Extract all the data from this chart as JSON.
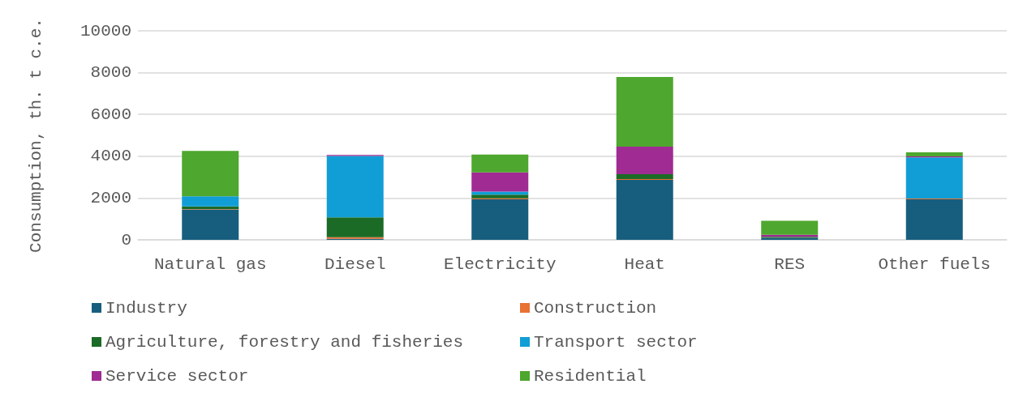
{
  "chart_data": {
    "type": "bar",
    "stacked": true,
    "ylabel": "Consumption, th. t c.e.",
    "categories": [
      "Natural gas",
      "Diesel",
      "Electricity",
      "Heat",
      "RES",
      "Other fuels"
    ],
    "series": [
      {
        "name": "Industry",
        "color": "#175e7e",
        "values": [
          1450,
          50,
          1940,
          2870,
          100,
          1940
        ]
      },
      {
        "name": "Construction",
        "color": "#e97132",
        "values": [
          20,
          80,
          50,
          40,
          null,
          40
        ]
      },
      {
        "name": "Agriculture, forestry and fisheries",
        "color": "#1b6b26",
        "values": [
          130,
          950,
          170,
          230,
          50,
          0
        ]
      },
      {
        "name": "Transport sector",
        "color": "#119ed6",
        "values": [
          480,
          2930,
          150,
          0,
          0,
          1960
        ]
      },
      {
        "name": "Service sector",
        "color": "#a02b93",
        "values": [
          null,
          50,
          920,
          1320,
          90,
          50
        ]
      },
      {
        "name": "Residential",
        "color": "#4ea72e",
        "values": [
          2170,
          0,
          850,
          3330,
          670,
          200
        ]
      }
    ],
    "ylim": [
      0,
      10000
    ],
    "yticks": [
      0,
      2000,
      4000,
      6000,
      8000,
      10000
    ],
    "grid": "y",
    "legend": "bottom"
  }
}
